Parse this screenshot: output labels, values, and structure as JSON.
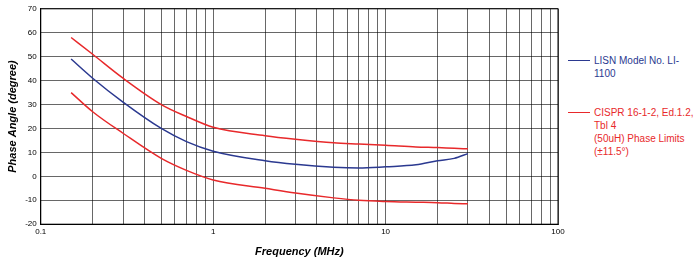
{
  "chart_data": {
    "type": "line",
    "x_label": "Frequency (MHz)",
    "y_label": "Phase Angle (degree)",
    "log": "x",
    "grid": true,
    "legend": "right",
    "xlim": [
      0.1,
      100
    ],
    "xticks": [
      0.1,
      1,
      10,
      100
    ],
    "ylim": [
      -20,
      70
    ],
    "yticks": [
      -20,
      -10,
      0,
      10,
      20,
      30,
      40,
      50,
      60,
      70
    ],
    "x": [
      0.15,
      0.2,
      0.3,
      0.5,
      0.7,
      1,
      2,
      3,
      5,
      7,
      10,
      15,
      20,
      25,
      30
    ],
    "series": [
      {
        "name": "LISN Model No. LI-1100",
        "color": "#2b3990",
        "values": [
          49,
          41,
          31,
          20,
          14.5,
          10.5,
          6.5,
          5,
          3.8,
          3.5,
          4,
          4.8,
          6.5,
          7.5,
          9.5
        ]
      },
      {
        "name": "CISPR 16-1-2, Ed.1.2, Tbl 4\n(50uH) Phase Limits\n(±11.5°)",
        "color": "#e8292b",
        "values": [
          58,
          51,
          41,
          30,
          25,
          20.5,
          17,
          15.5,
          14,
          13.5,
          13,
          12.3,
          12,
          11.7,
          11.5
        ]
      },
      {
        "color": "#e8292b",
        "values": [
          35,
          27,
          18,
          7.5,
          2.5,
          -1.5,
          -5,
          -7,
          -9,
          -10,
          -10.5,
          -10.8,
          -11,
          -11.3,
          -11.5
        ]
      }
    ]
  }
}
